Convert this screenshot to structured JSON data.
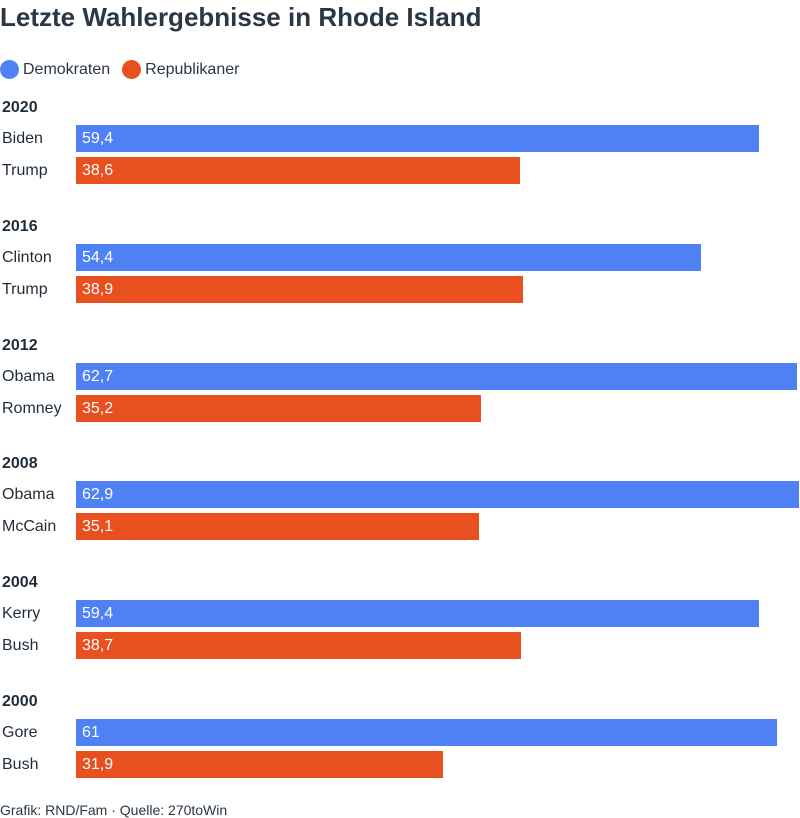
{
  "chart_data": {
    "type": "bar",
    "orientation": "horizontal",
    "title": "Letzte Wahlergebnisse in Rhode Island",
    "legend": [
      {
        "name": "Demokraten",
        "color": "#4f81f5"
      },
      {
        "name": "Republikaner",
        "color": "#e8501f"
      }
    ],
    "legend_placement": "top-left",
    "xlim": [
      0,
      62.9
    ],
    "grid": false,
    "groups": [
      {
        "year": "2020",
        "bars": [
          {
            "candidate": "Biden",
            "value": 59.4,
            "label": "59,4",
            "party": "Demokraten"
          },
          {
            "candidate": "Trump",
            "value": 38.6,
            "label": "38,6",
            "party": "Republikaner"
          }
        ]
      },
      {
        "year": "2016",
        "bars": [
          {
            "candidate": "Clinton",
            "value": 54.4,
            "label": "54,4",
            "party": "Demokraten"
          },
          {
            "candidate": "Trump",
            "value": 38.9,
            "label": "38,9",
            "party": "Republikaner"
          }
        ]
      },
      {
        "year": "2012",
        "bars": [
          {
            "candidate": "Obama",
            "value": 62.7,
            "label": "62,7",
            "party": "Demokraten"
          },
          {
            "candidate": "Romney",
            "value": 35.2,
            "label": "35,2",
            "party": "Republikaner"
          }
        ]
      },
      {
        "year": "2008",
        "bars": [
          {
            "candidate": "Obama",
            "value": 62.9,
            "label": "62,9",
            "party": "Demokraten"
          },
          {
            "candidate": "McCain",
            "value": 35.1,
            "label": "35,1",
            "party": "Republikaner"
          }
        ]
      },
      {
        "year": "2004",
        "bars": [
          {
            "candidate": "Kerry",
            "value": 59.4,
            "label": "59,4",
            "party": "Demokraten"
          },
          {
            "candidate": "Bush",
            "value": 38.7,
            "label": "38,7",
            "party": "Republikaner"
          }
        ]
      },
      {
        "year": "2000",
        "bars": [
          {
            "candidate": "Gore",
            "value": 61,
            "label": "61",
            "party": "Demokraten"
          },
          {
            "candidate": "Bush",
            "value": 31.9,
            "label": "31,9",
            "party": "Republikaner"
          }
        ]
      }
    ]
  },
  "footer": {
    "source": "Grafik: RND/Fam · Quelle: 270toWin"
  }
}
